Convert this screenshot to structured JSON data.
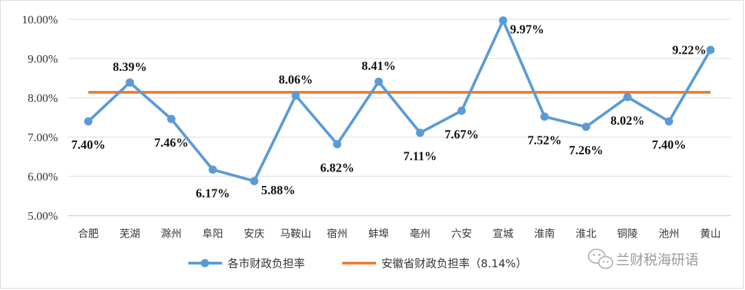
{
  "chart_data": {
    "type": "line",
    "title": "",
    "xlabel": "",
    "ylabel": "",
    "ylim": [
      5.0,
      10.0
    ],
    "yticks": [
      "5.00%",
      "6.00%",
      "7.00%",
      "8.00%",
      "9.00%",
      "10.00%"
    ],
    "grid": true,
    "legend_position": "bottom",
    "categories": [
      "合肥",
      "芜湖",
      "滁州",
      "阜阳",
      "安庆",
      "马鞍山",
      "宿州",
      "蚌埠",
      "亳州",
      "六安",
      "宣城",
      "淮南",
      "淮北",
      "铜陵",
      "池州",
      "黄山"
    ],
    "series": [
      {
        "name": "各市财政负担率",
        "color": "#5b9bd5",
        "values": [
          7.4,
          8.39,
          7.46,
          6.17,
          5.88,
          8.06,
          6.82,
          8.41,
          7.11,
          7.67,
          9.97,
          7.52,
          7.26,
          8.02,
          7.4,
          9.22
        ],
        "labels": [
          "7.40%",
          "8.39%",
          "7.46%",
          "6.17%",
          "5.88%",
          "8.06%",
          "6.82%",
          "8.41%",
          "7.11%",
          "7.67%",
          "9.97%",
          "7.52%",
          "7.26%",
          "8.02%",
          "7.40%",
          "9.22%"
        ],
        "label_positions": [
          "below",
          "above",
          "below",
          "below",
          "right",
          "above",
          "below",
          "above",
          "below",
          "below",
          "right",
          "below",
          "below",
          "below",
          "below",
          "left"
        ]
      },
      {
        "name": "安徽省财政负担率（8.14%）",
        "color": "#ed7d31",
        "constant": 8.14
      }
    ]
  },
  "watermark": {
    "text": "兰财税海研语",
    "icon": "wechat-icon"
  }
}
